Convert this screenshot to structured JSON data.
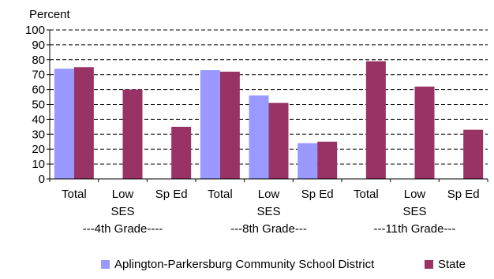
{
  "chart_data": {
    "type": "bar",
    "ylabel": "Percent",
    "ylim": [
      0,
      100
    ],
    "yticks": [
      0,
      10,
      20,
      30,
      40,
      50,
      60,
      70,
      80,
      90,
      100
    ],
    "grid": "horizontal dashed",
    "categories": [
      "Total",
      "Low SES",
      "Sp Ed",
      "Total",
      "Low SES",
      "Sp Ed",
      "Total",
      "Low SES",
      "Sp Ed"
    ],
    "category_lines": [
      [
        "Total"
      ],
      [
        "Low",
        "SES"
      ],
      [
        "Sp Ed"
      ],
      [
        "Total"
      ],
      [
        "Low",
        "SES"
      ],
      [
        "Sp Ed"
      ],
      [
        "Total"
      ],
      [
        "Low",
        "SES"
      ],
      [
        "Sp Ed"
      ]
    ],
    "groups": [
      {
        "label": "---4th Grade----"
      },
      {
        "label": "---8th Grade---"
      },
      {
        "label": "---11th Grade---"
      }
    ],
    "series": [
      {
        "name": "Aplington-Parkersburg Community School District",
        "color": "#9999ff",
        "values": [
          74,
          null,
          null,
          73,
          56,
          24,
          null,
          null,
          null
        ]
      },
      {
        "name": "State",
        "color": "#993366",
        "values": [
          75,
          60,
          35,
          72,
          51,
          25,
          79,
          62,
          33
        ]
      }
    ],
    "legend_position": "bottom"
  }
}
